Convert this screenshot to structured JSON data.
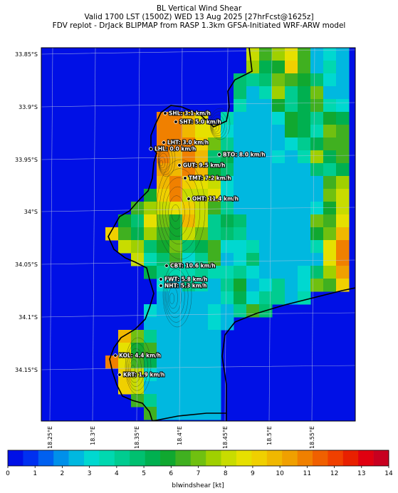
{
  "header": {
    "line1": "BL Vertical Wind Shear",
    "line2": "Valid 1700 LST (1500Z) WED 13 Aug 2025 [27hrFcst@1625z]",
    "line3": "FDV replot - DrJack BLIPMAP from RASP 1.3km GFSA-Initiated WRF-ARW model"
  },
  "map": {
    "lat_ticks": [
      "33.85°S",
      "33.9°S",
      "33.95°S",
      "34°S",
      "34.05°S",
      "34.1°S",
      "34.15°S"
    ],
    "lon_ticks": [
      "18.25°E",
      "18.3°E",
      "18.35°E",
      "18.4°E",
      "18.45°E",
      "18.5°E",
      "18.55°E"
    ],
    "stations": [
      {
        "label": "SHL: 3.1 km/h"
      },
      {
        "label": "SHT: 5.0 km/h"
      },
      {
        "label": "LHT: 3.0 km/h"
      },
      {
        "label": "LHL: 0.0 km/h"
      },
      {
        "label": "BTO: 8.0 km/h"
      },
      {
        "label": "GUT: 9.5 km/h"
      },
      {
        "label": "TMT: 7.2 km/h"
      },
      {
        "label": "OHT: 11.4 km/h"
      },
      {
        "label": "CBT: 10.6 km/h"
      },
      {
        "label": "FWT: 5.8 km/h"
      },
      {
        "label": "NHT: 5.3 km/h"
      },
      {
        "label": "KOL: 4.4 km/h"
      },
      {
        "label": "KRT: 1.9 km/h"
      }
    ]
  },
  "colorbar": {
    "ticks": [
      "0",
      "1",
      "2",
      "3",
      "4",
      "5",
      "6",
      "7",
      "8",
      "9",
      "10",
      "11",
      "12",
      "13",
      "14"
    ],
    "label": "blwindshear [kt]",
    "colors": [
      "#0010e6",
      "#0030f0",
      "#0060f0",
      "#0090ea",
      "#00b8e0",
      "#00d8d0",
      "#00d8b0",
      "#00cc90",
      "#00c070",
      "#00b050",
      "#10a830",
      "#40b020",
      "#70c010",
      "#a0d000",
      "#c8dc00",
      "#e6e000",
      "#f0d000",
      "#f0b800",
      "#f0a000",
      "#f08000",
      "#f06000",
      "#f04000",
      "#e82000",
      "#e00010",
      "#c80020"
    ]
  }
}
